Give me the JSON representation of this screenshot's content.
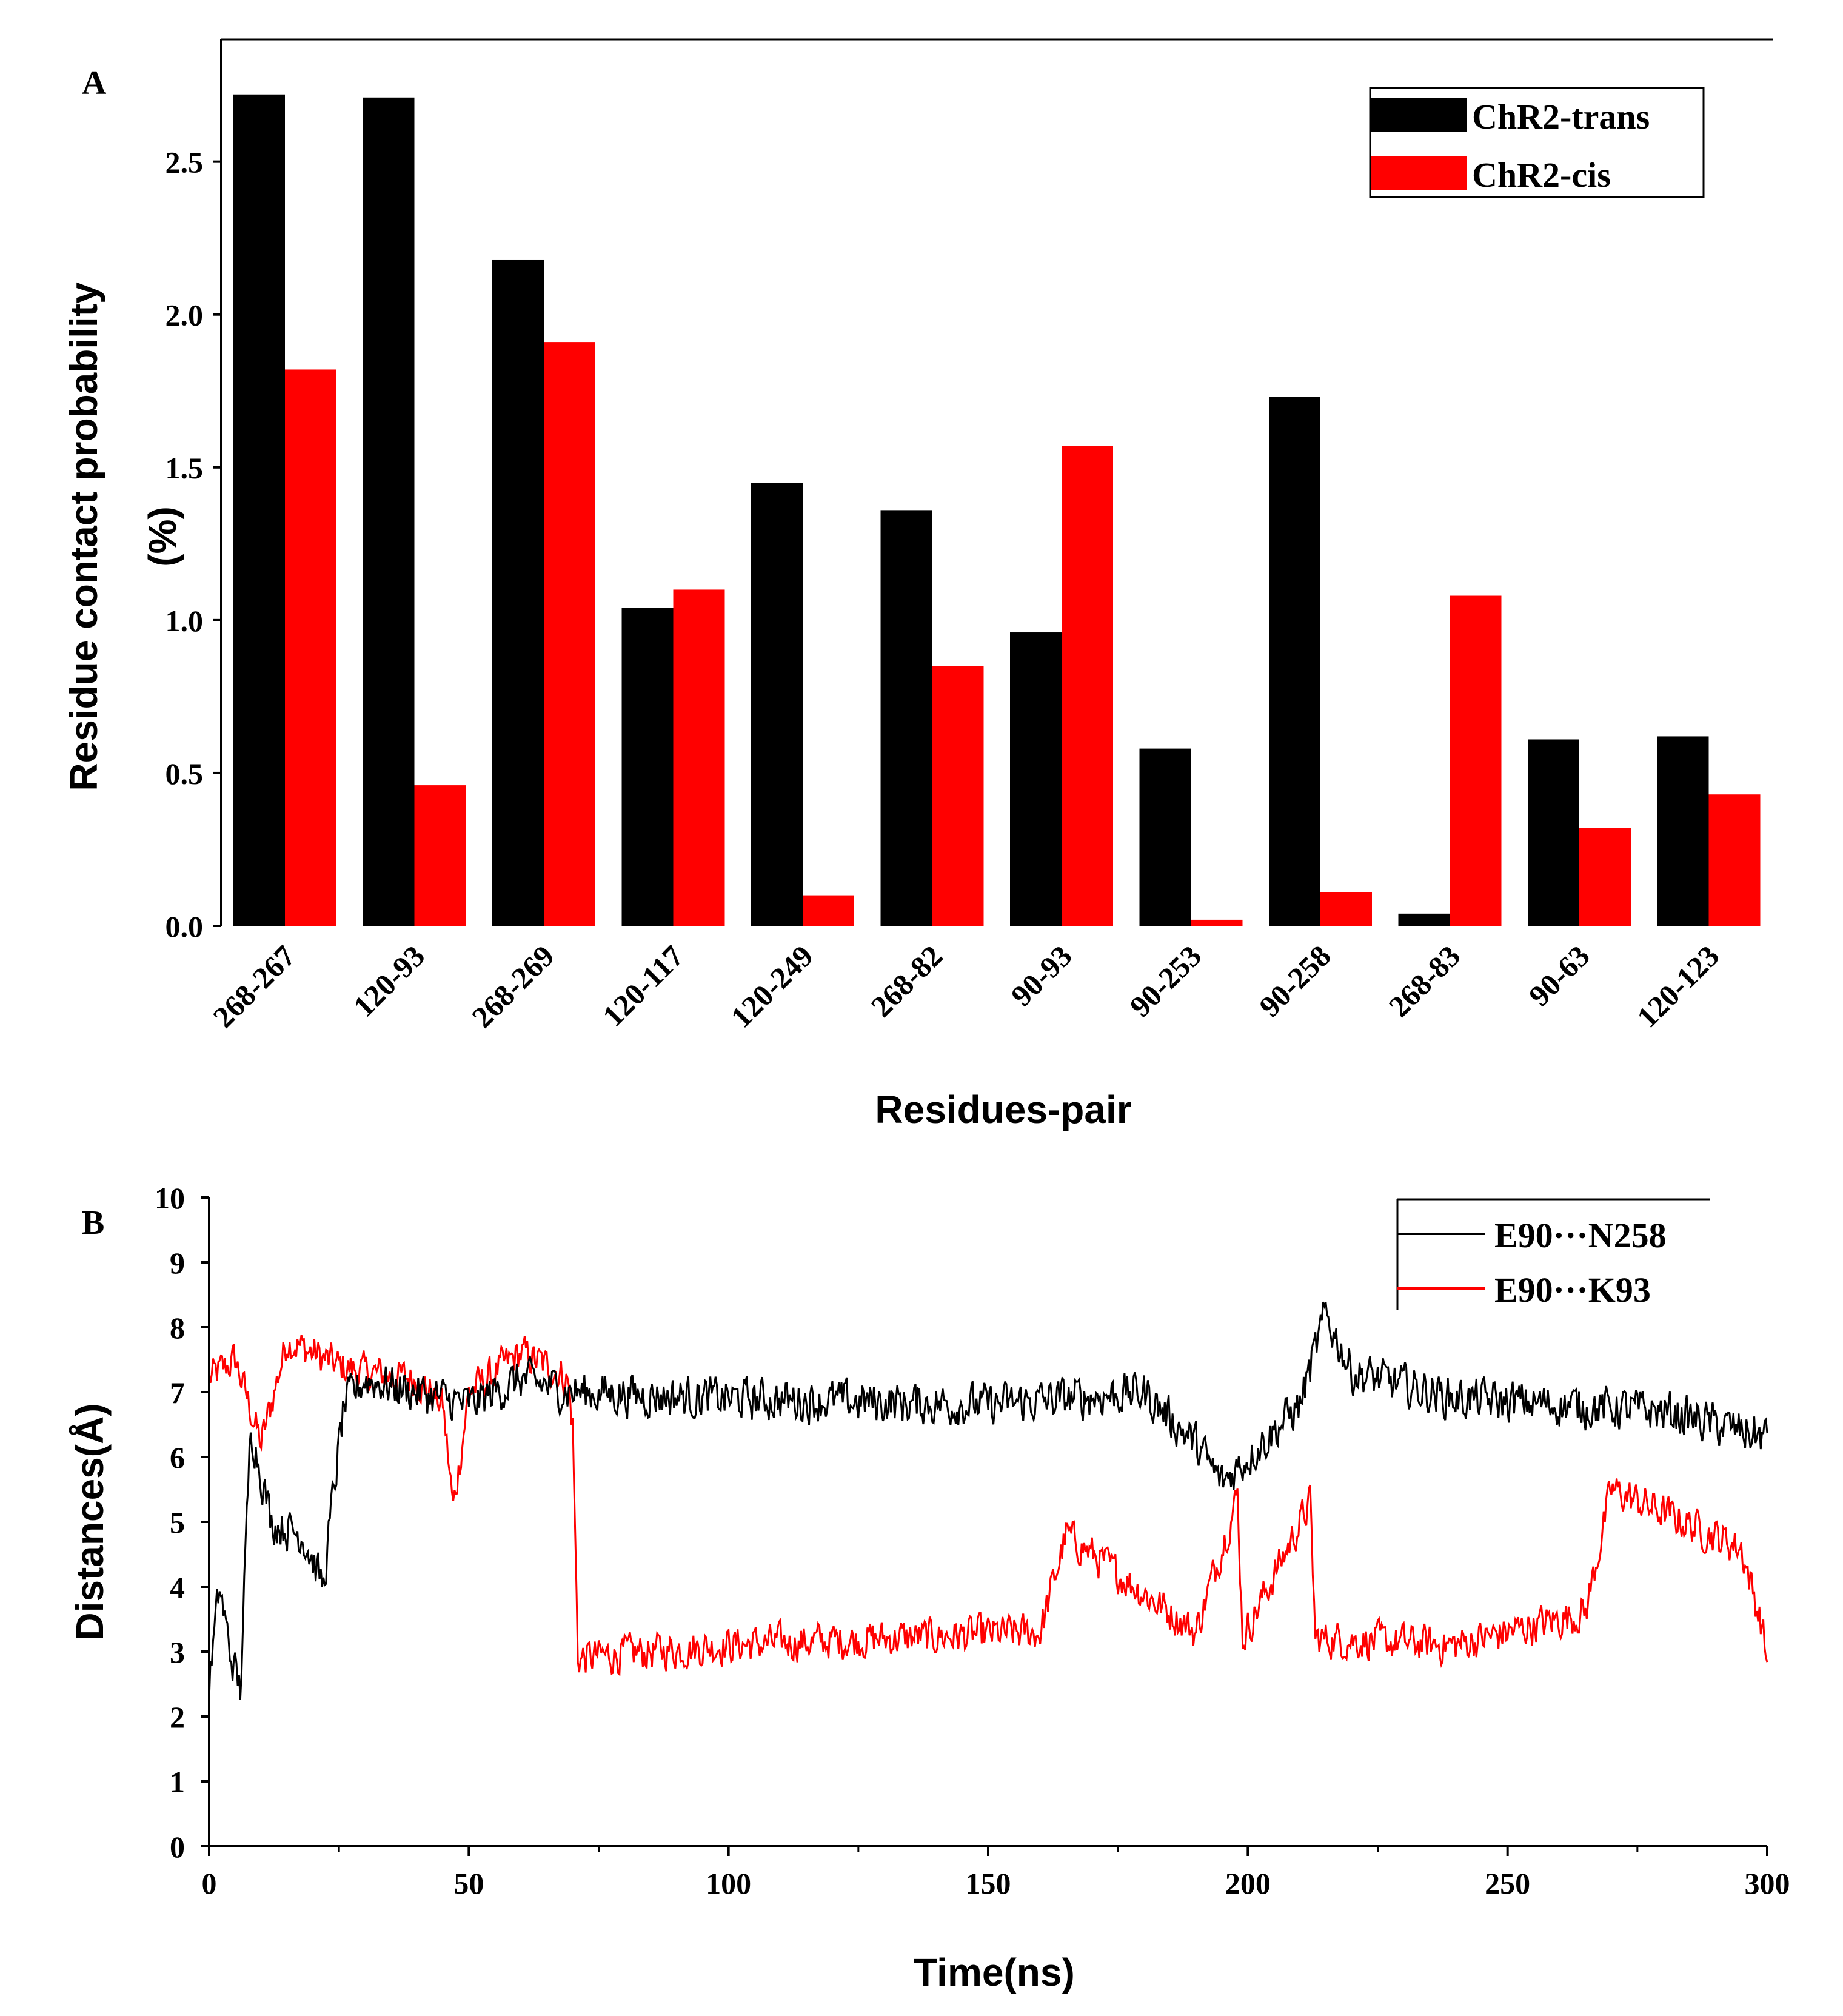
{
  "chart_data": [
    {
      "type": "bar",
      "panel_label": "A",
      "categories": [
        "268-267",
        "120-93",
        "268-269",
        "120-117",
        "120-249",
        "268-82",
        "90-93",
        "90-253",
        "90-258",
        "268-83",
        "90-63",
        "120-123"
      ],
      "series": [
        {
          "name": "ChR2-trans",
          "color": "#000000",
          "values": [
            2.72,
            2.71,
            2.18,
            1.04,
            1.45,
            1.36,
            0.96,
            0.58,
            1.73,
            0.04,
            0.61,
            0.62
          ]
        },
        {
          "name": "ChR2-cis",
          "color": "#ff0000",
          "values": [
            1.82,
            0.46,
            1.91,
            1.1,
            0.1,
            0.85,
            1.57,
            0.02,
            0.11,
            1.08,
            0.32,
            0.43
          ]
        }
      ],
      "ylabel_line1": "Residue contact probability",
      "ylabel_line2": "(%)",
      "xlabel": "Residues-pair",
      "ylim": [
        0,
        2.9
      ],
      "yticks": [
        "0.0",
        "0.5",
        "1.0",
        "1.5",
        "2.0",
        "2.5"
      ],
      "legend_position": "top-right"
    },
    {
      "type": "line",
      "panel_label": "B",
      "series": [
        {
          "name": "E90···N258",
          "color": "#000000"
        },
        {
          "name": "E90···K93",
          "color": "#ff0000"
        }
      ],
      "xlabel": "Time(ns)",
      "ylabel": "Distances(Å)",
      "xlim": [
        0,
        300
      ],
      "ylim": [
        0,
        10
      ],
      "xticks": [
        "0",
        "50",
        "100",
        "150",
        "200",
        "250",
        "300"
      ],
      "yticks": [
        "0",
        "1",
        "2",
        "3",
        "4",
        "5",
        "6",
        "7",
        "8",
        "9",
        "10"
      ],
      "legend_position": "top-right",
      "trace_keypoints": {
        "E90···N258": {
          "t": [
            0,
            2,
            4,
            6,
            8,
            12,
            18,
            22,
            24,
            26,
            30,
            40,
            50,
            60,
            70,
            100,
            150,
            180,
            190,
            195,
            200,
            210,
            215,
            220,
            240,
            260,
            280,
            300
          ],
          "d": [
            2.5,
            4.0,
            3.0,
            2.4,
            6.5,
            5.0,
            4.8,
            4.0,
            5.5,
            6.8,
            7.2,
            7.0,
            6.8,
            7.2,
            7.0,
            6.9,
            6.8,
            7.0,
            6.2,
            5.6,
            6.0,
            6.8,
            8.2,
            7.3,
            6.9,
            6.8,
            6.7,
            6.3
          ]
        },
        "E90···K93": {
          "t": [
            0,
            5,
            10,
            15,
            20,
            25,
            30,
            40,
            45,
            47,
            50,
            55,
            60,
            65,
            69,
            70,
            71,
            100,
            130,
            160,
            165,
            190,
            198,
            199,
            212,
            213,
            240,
            265,
            270,
            295,
            299,
            300
          ],
          "d": [
            7.2,
            7.5,
            6.2,
            7.8,
            7.6,
            7.4,
            7.3,
            7.2,
            6.8,
            5.2,
            7.0,
            7.3,
            7.6,
            7.4,
            7.2,
            6.5,
            2.9,
            3.1,
            3.2,
            3.3,
            4.8,
            3.3,
            5.4,
            3.2,
            5.3,
            3.2,
            3.1,
            3.6,
            5.5,
            4.6,
            3.4,
            2.8
          ]
        }
      },
      "noise_amplitude": {
        "E90···N258": 0.45,
        "E90···K93": 0.4
      }
    }
  ]
}
